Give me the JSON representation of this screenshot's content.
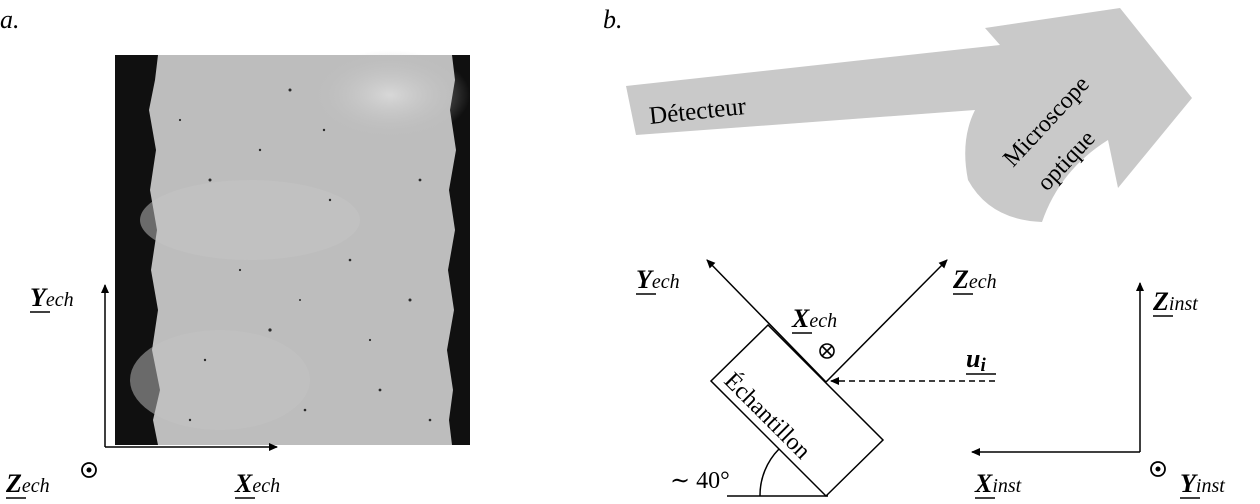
{
  "panel_a": {
    "label": "a.",
    "axes": {
      "y": {
        "main": "Y",
        "sub": "ech"
      },
      "x": {
        "main": "X",
        "sub": "ech"
      },
      "z": {
        "main": "Z",
        "sub": "ech"
      }
    }
  },
  "panel_b": {
    "label": "b.",
    "detector_label": "Détecteur",
    "microscope_label_1": "Microscope",
    "microscope_label_2": "optique",
    "sample_label": "Échantillon",
    "angle_label": "∼ 40°",
    "sample_axes": {
      "y": {
        "main": "Y",
        "sub": "ech"
      },
      "z": {
        "main": "Z",
        "sub": "ech"
      },
      "x": {
        "main": "X",
        "sub": "ech"
      }
    },
    "beam": {
      "main": "u",
      "sub": "i"
    },
    "instrument_axes": {
      "z": {
        "main": "Z",
        "sub": "inst"
      },
      "x": {
        "main": "X",
        "sub": "inst"
      },
      "y": {
        "main": "Y",
        "sub": "inst"
      }
    }
  },
  "colors": {
    "gray_shape": "#c9c9c9",
    "ink": "#000000",
    "sample_image": "#bdbdbd"
  }
}
